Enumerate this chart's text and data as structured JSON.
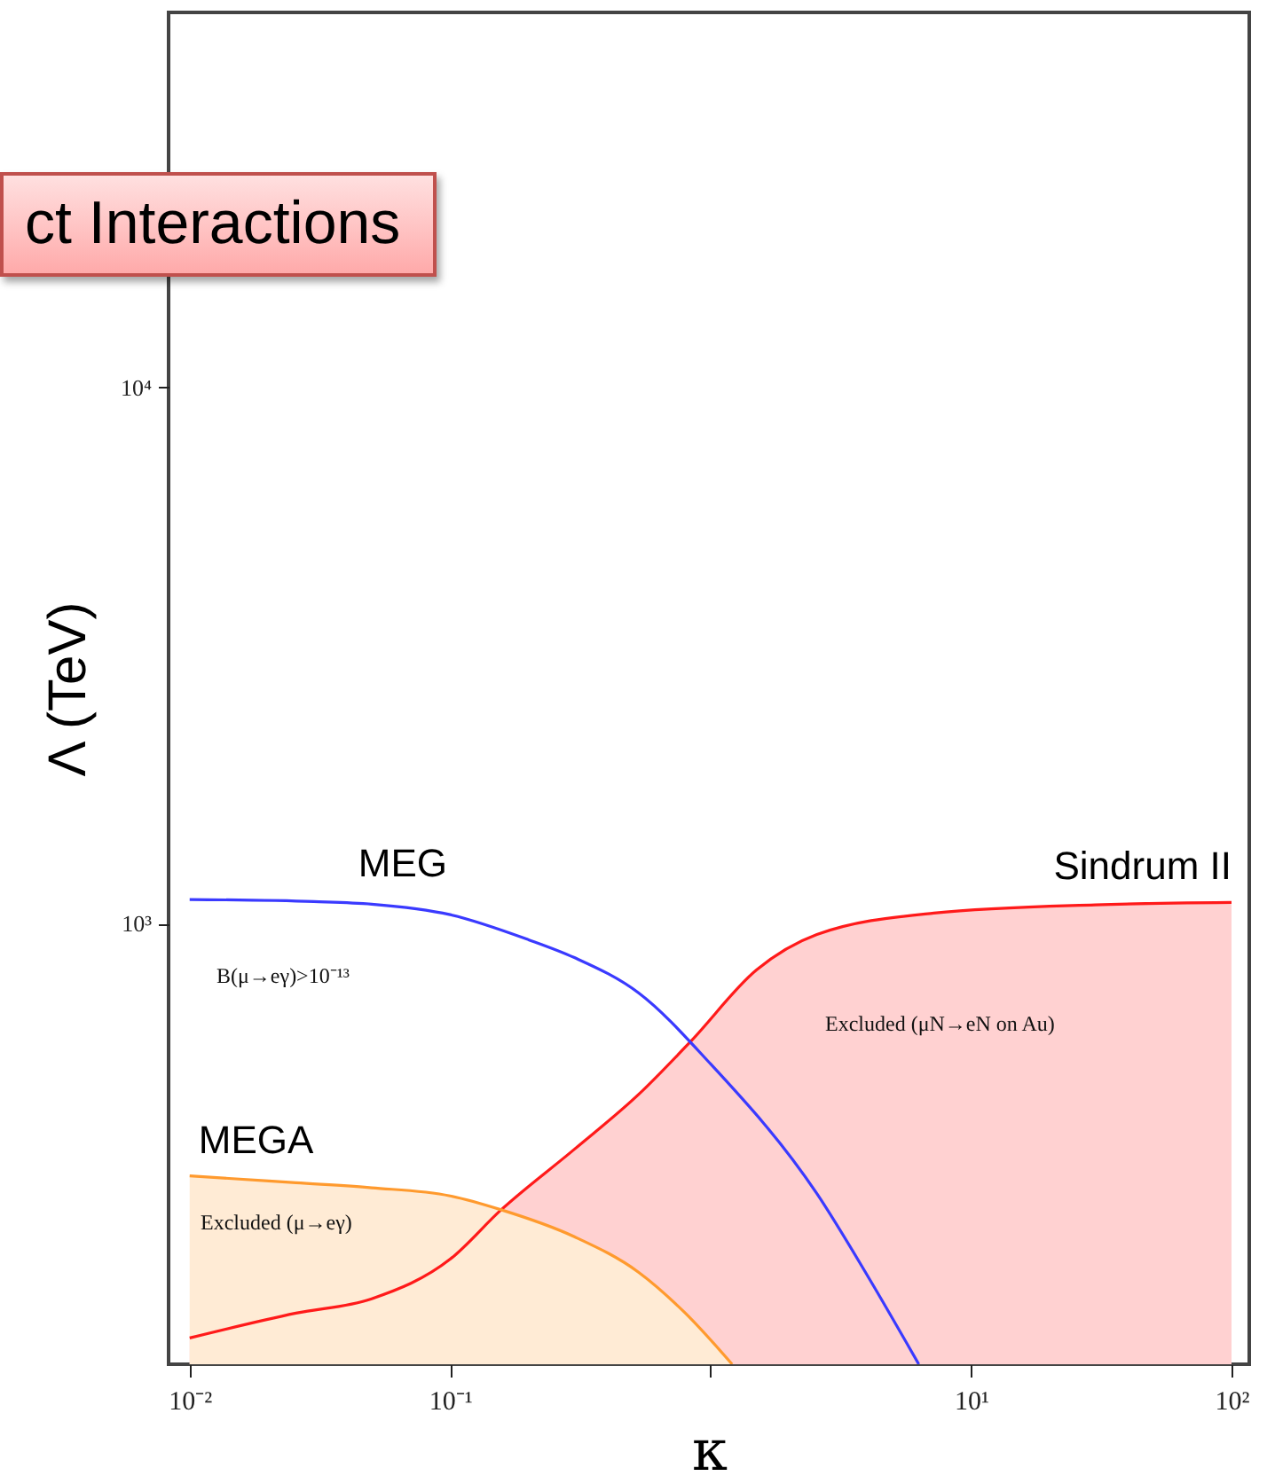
{
  "chart_data": {
    "type": "line",
    "title": "ct Interactions",
    "xlabel": "κ",
    "ylabel": "Λ (TeV)",
    "log": "xy",
    "grid": false,
    "marker": "none",
    "line_style": "solid",
    "xlim": [
      0.0083,
      117
    ],
    "ylim": [
      151,
      50000
    ],
    "xticks": [
      {
        "value": 0.01,
        "label": "10⁻²"
      },
      {
        "value": 0.1,
        "label": "10⁻¹"
      },
      {
        "value": 1,
        "label": null
      },
      {
        "value": 10,
        "label": "10¹"
      },
      {
        "value": 100,
        "label": "10²"
      }
    ],
    "yticks": [
      {
        "value": 1000,
        "label": "10³"
      },
      {
        "value": 10000,
        "label": "10⁴"
      }
    ],
    "series": [
      {
        "name": "Sindrum II",
        "type": "area",
        "color": "#ff1a1a",
        "x": [
          0.01,
          0.0256,
          0.05,
          0.1,
          0.157,
          0.3,
          0.53,
          0.84,
          1.5,
          2.56,
          7.2,
          30,
          100
        ],
        "values": [
          169,
          188,
          200,
          237,
          293,
          380,
          481,
          604,
          820,
          955,
          1047,
          1085,
          1096
        ]
      },
      {
        "name": "MEGA",
        "type": "area",
        "color": "#ff9a2e",
        "x": [
          0.01,
          0.0256,
          0.05,
          0.1,
          0.157,
          0.3,
          0.53,
          0.8,
          1.21
        ],
        "values": [
          339,
          329,
          322,
          311,
          293,
          261,
          224,
          188,
          151
        ]
      },
      {
        "name": "MEG",
        "type": "line",
        "color": "#3a3aff",
        "x": [
          0.01,
          0.03,
          0.05,
          0.1,
          0.2,
          0.3,
          0.53,
          1,
          2.56,
          4,
          6.3
        ],
        "values": [
          1110,
          1100,
          1088,
          1040,
          934,
          865,
          743,
          548,
          314,
          221,
          151
        ]
      }
    ],
    "annotations": [
      "B(μ→eγ)>10⁻¹³",
      "Excluded (μN→eN on Au)",
      "Excluded (μ→eγ)"
    ]
  }
}
